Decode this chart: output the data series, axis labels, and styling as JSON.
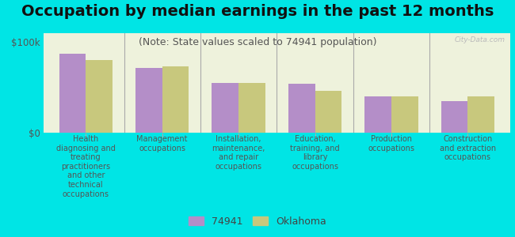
{
  "title": "Occupation by median earnings in the past 12 months",
  "subtitle": "(Note: State values scaled to 74941 population)",
  "categories": [
    "Health\ndiagnosing and\ntreating\npractitioners\nand other\ntechnical\noccupations",
    "Management\noccupations",
    "Installation,\nmaintenance,\nand repair\noccupations",
    "Education,\ntraining, and\nlibrary\noccupations",
    "Production\noccupations",
    "Construction\nand extraction\noccupations"
  ],
  "values_74941": [
    87000,
    72000,
    55000,
    54000,
    40000,
    35000
  ],
  "values_oklahoma": [
    80000,
    73000,
    55000,
    46000,
    40000,
    40000
  ],
  "color_74941": "#b48ec8",
  "color_oklahoma": "#c8c87d",
  "bar_width": 0.35,
  "ylim": [
    0,
    110000
  ],
  "yticks": [
    0,
    100000
  ],
  "ytick_labels": [
    "$0",
    "$100k"
  ],
  "legend_label_74941": "74941",
  "legend_label_oklahoma": "Oklahoma",
  "background_color": "#00e5e5",
  "plot_bg_color": "#eef2dc",
  "watermark": "City-Data.com",
  "title_fontsize": 14,
  "subtitle_fontsize": 9,
  "label_fontsize": 7
}
